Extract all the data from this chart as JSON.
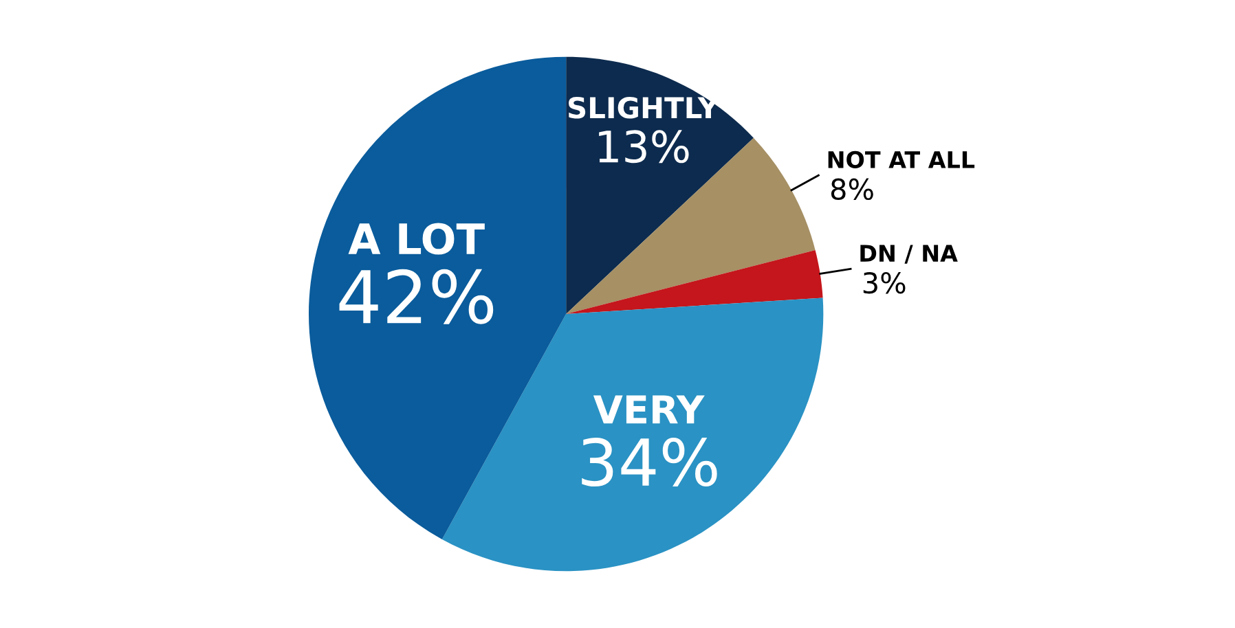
{
  "chart_data": {
    "type": "pie",
    "categories": [
      "SLIGHTLY",
      "NOT AT ALL",
      "DN / NA",
      "VERY",
      "A LOT"
    ],
    "values": [
      13,
      8,
      3,
      34,
      42
    ],
    "value_labels": [
      "13%",
      "8%",
      "3%",
      "34%",
      "42%"
    ],
    "colors": [
      "#0d2b4e",
      "#a69064",
      "#c4161c",
      "#2a92c4",
      "#0a5c9c"
    ],
    "legend": false
  }
}
